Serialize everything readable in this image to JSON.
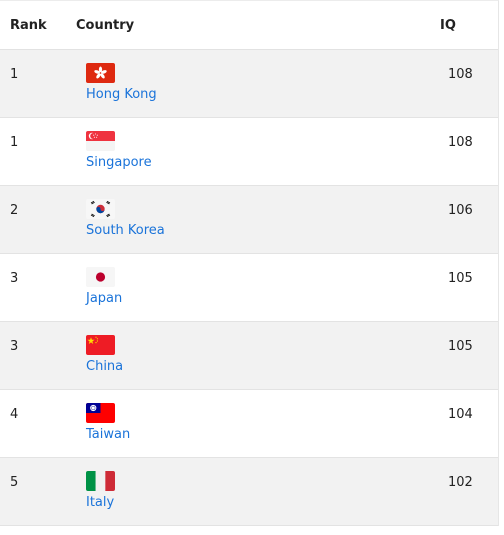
{
  "table": {
    "headers": {
      "rank": "Rank",
      "country": "Country",
      "iq": "IQ"
    },
    "rows": [
      {
        "rank": "1",
        "country": "Hong Kong",
        "iq": "108",
        "flag_icon": "hong-kong-flag-icon"
      },
      {
        "rank": "1",
        "country": "Singapore",
        "iq": "108",
        "flag_icon": "singapore-flag-icon"
      },
      {
        "rank": "2",
        "country": "South Korea",
        "iq": "106",
        "flag_icon": "south-korea-flag-icon"
      },
      {
        "rank": "3",
        "country": "Japan",
        "iq": "105",
        "flag_icon": "japan-flag-icon"
      },
      {
        "rank": "3",
        "country": "China",
        "iq": "105",
        "flag_icon": "china-flag-icon"
      },
      {
        "rank": "4",
        "country": "Taiwan",
        "iq": "104",
        "flag_icon": "taiwan-flag-icon"
      },
      {
        "rank": "5",
        "country": "Italy",
        "iq": "102",
        "flag_icon": "italy-flag-icon"
      }
    ]
  },
  "colors": {
    "link": "#1a73d9",
    "row_shade": "#f2f2f2"
  }
}
